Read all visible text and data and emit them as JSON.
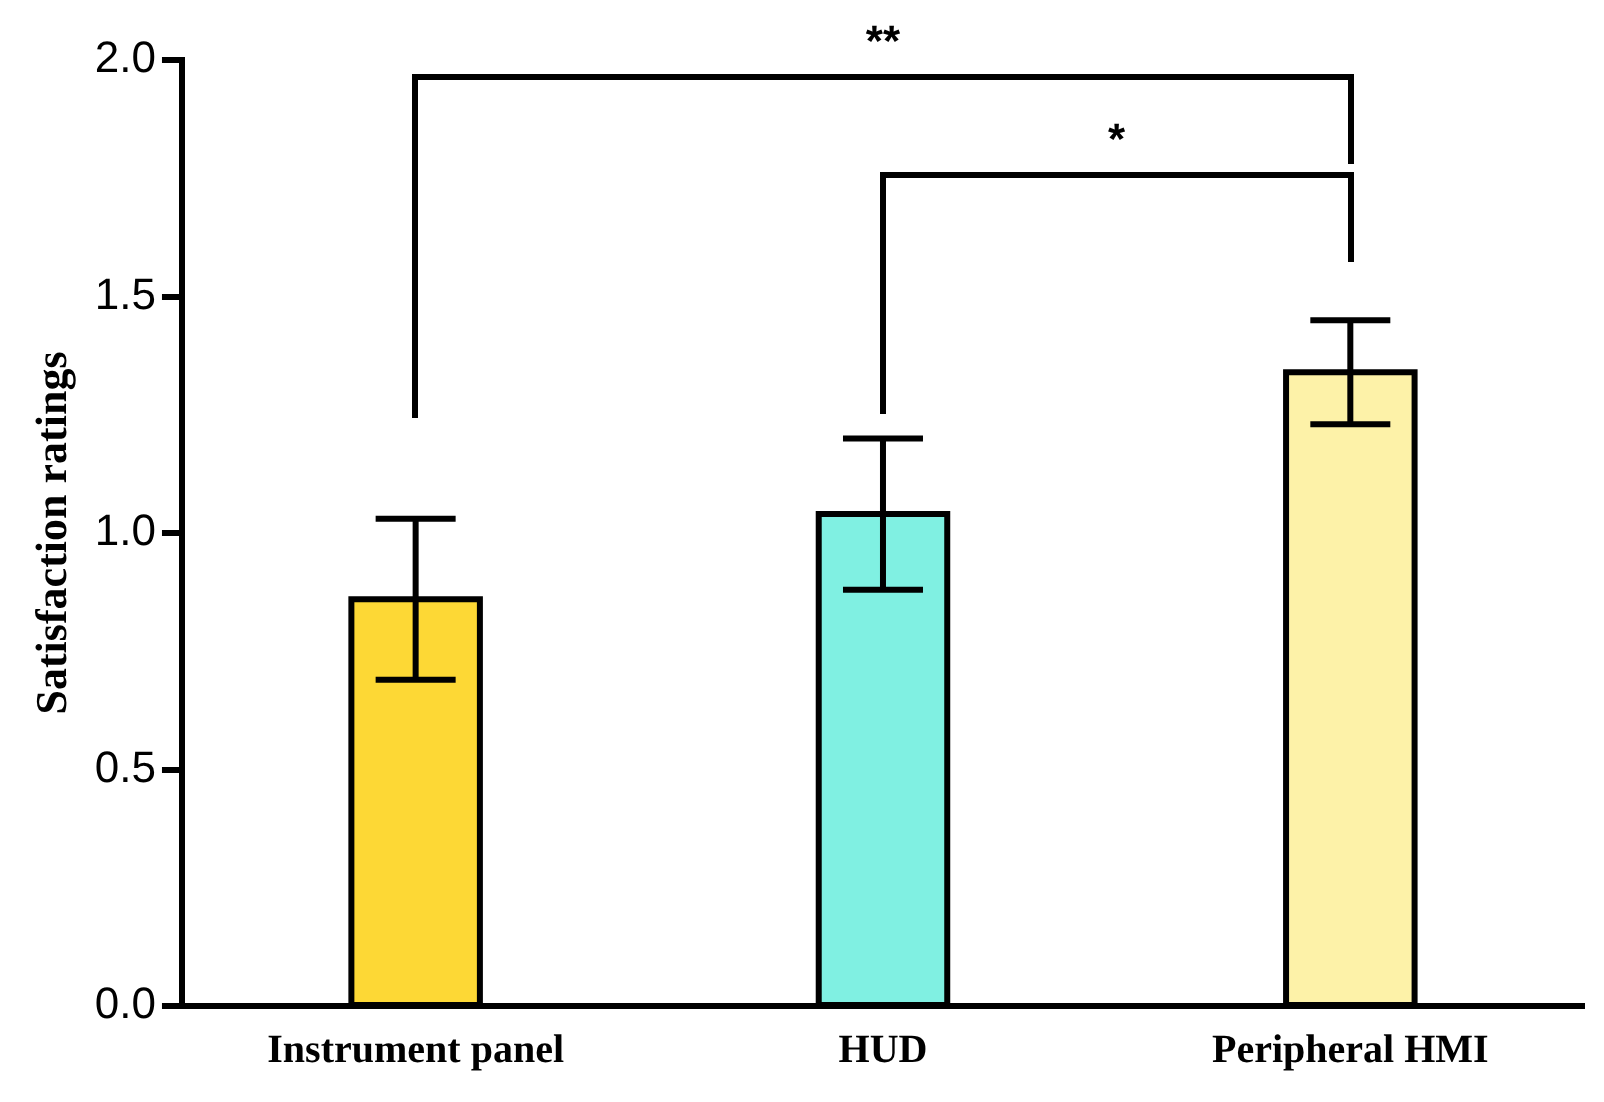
{
  "chart_data": {
    "type": "bar",
    "ylabel": "Satisfaction ratings",
    "categories": [
      "Instrument panel",
      "HUD",
      "Peripheral HMI"
    ],
    "values": [
      0.86,
      1.04,
      1.34
    ],
    "colors": [
      "#fdd835",
      "#80f0e2",
      "#fdf2a8"
    ],
    "errors": [
      [
        0.69,
        1.03
      ],
      [
        0.88,
        1.2
      ],
      [
        1.23,
        1.45
      ]
    ],
    "ylim": [
      0,
      2.0
    ],
    "yticks": [
      {
        "value": 0,
        "label": "0.0"
      },
      {
        "value": 0.5,
        "label": "0.5"
      },
      {
        "value": 1,
        "label": "1.0"
      },
      {
        "value": 1.5,
        "label": "1.5"
      },
      {
        "value": 2,
        "label": "2.0"
      }
    ],
    "grid": false,
    "legend": false,
    "annotations": [
      "**",
      "*"
    ]
  }
}
